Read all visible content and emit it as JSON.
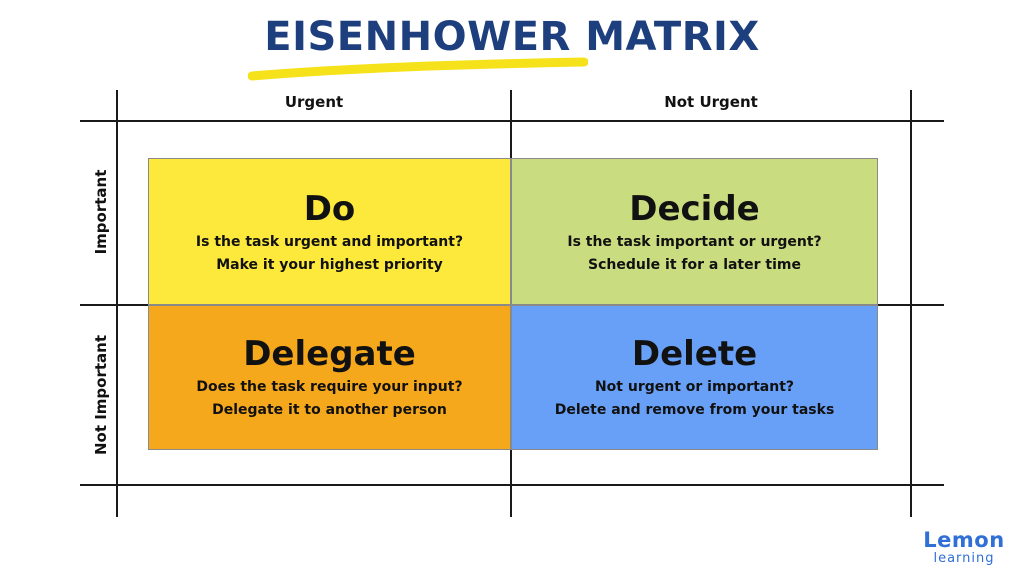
{
  "title": "EISENHOWER MATRIX",
  "columns": [
    "Urgent",
    "Not Urgent"
  ],
  "rows": [
    "Important",
    "Not Important"
  ],
  "quadrants": [
    {
      "title": "Do",
      "line1": "Is the task urgent and important?",
      "line2": "Make it your highest priority",
      "color": "#fde93c"
    },
    {
      "title": "Decide",
      "line1": "Is the task important or urgent?",
      "line2": "Schedule it for a later time",
      "color": "#cadc80"
    },
    {
      "title": "Delegate",
      "line1": "Does the task require your input?",
      "line2": "Delegate it to another person",
      "color": "#f6a81c"
    },
    {
      "title": "Delete",
      "line1": "Not urgent or important?",
      "line2": "Delete and remove from your tasks",
      "color": "#69a0f7"
    }
  ],
  "logo": {
    "word": "Lemon",
    "sub": "learning"
  },
  "colors": {
    "title": "#1e3f7d",
    "highlight": "#f6e21a",
    "logo": "#2f6fd6"
  }
}
